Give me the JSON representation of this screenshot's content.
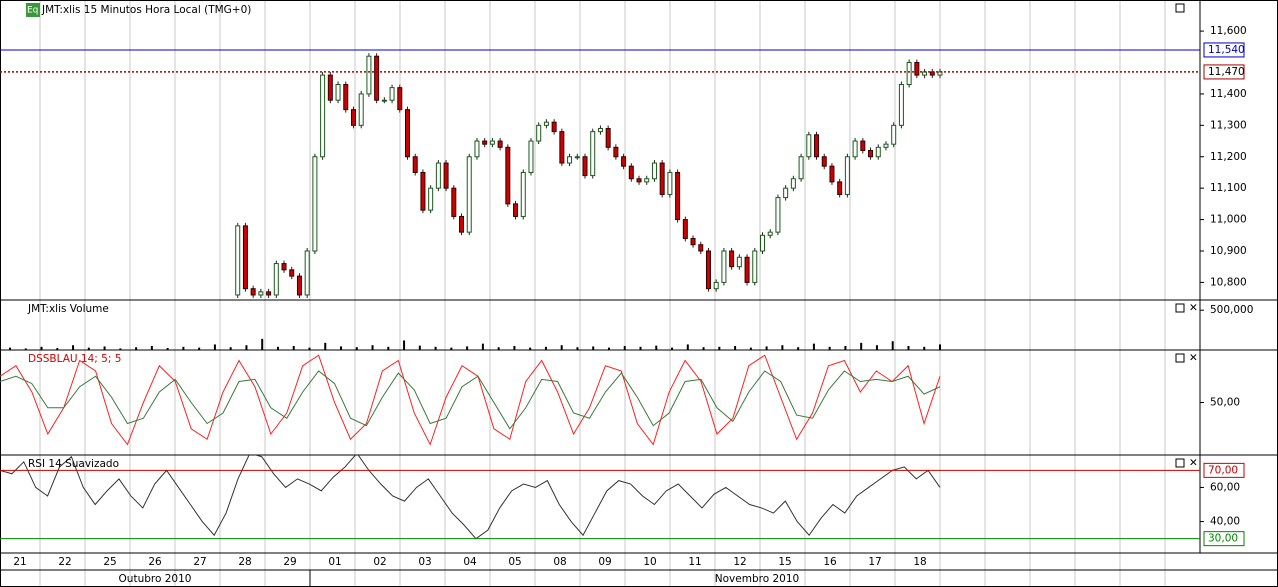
{
  "header": {
    "badge": "Eq",
    "title": "JMT:xlis 15 Minutos Hora Local (TMG+0)"
  },
  "panels": [
    {
      "type": "candlestick",
      "ylim": [
        10744,
        11699
      ],
      "yticks": [
        {
          "value": 10800,
          "label": "10,800"
        },
        {
          "value": 10900,
          "label": "10,900"
        },
        {
          "value": 11000,
          "label": "11,000"
        },
        {
          "value": 11100,
          "label": "11,100"
        },
        {
          "value": 11200,
          "label": "11,200"
        },
        {
          "value": 11300,
          "label": "11,300"
        },
        {
          "value": 11400,
          "label": "11,400"
        },
        {
          "value": 11600,
          "label": "11,600"
        }
      ],
      "lines": [
        {
          "value": 11540,
          "label": "11,540",
          "color": "#0000cc",
          "style": "solid"
        },
        {
          "value": 11470,
          "label": "11,470",
          "color": "#aa0000",
          "style": "dotted"
        }
      ],
      "close": [
        10760,
        10980,
        10780,
        10760,
        10770,
        10760,
        10860,
        10840,
        10820,
        10760,
        10900,
        11200,
        11460,
        11380,
        11430,
        11350,
        11300,
        11400,
        11520,
        11380,
        11380,
        11420,
        11350,
        11200,
        11150,
        11030,
        11100,
        11180,
        11100,
        11010,
        10960,
        11200,
        11250,
        11240,
        11250,
        11230,
        11050,
        11010,
        11150,
        11250,
        11300,
        11310,
        11280,
        11180,
        11200,
        11200,
        11140,
        11280,
        11290,
        11230,
        11200,
        11170,
        11130,
        11120,
        11130,
        11180,
        11080,
        11150,
        11000,
        10940,
        10920,
        10900,
        10780,
        10800,
        10900,
        10850,
        10880,
        10800,
        10900,
        10950,
        10960,
        11070,
        11100,
        11130,
        11200,
        11270,
        11200,
        11170,
        11120,
        11080,
        11200,
        11250,
        11220,
        11200,
        11230,
        11240,
        11300,
        11430,
        11500,
        11460,
        11470,
        11460,
        11470
      ]
    },
    {
      "type": "bar",
      "label": "JMT:xlis Volume",
      "ylim": [
        0,
        628000
      ],
      "yticks": [
        {
          "value": 500000,
          "label": "500,000"
        }
      ],
      "values": [
        30000,
        20000,
        40000,
        25000,
        60000,
        30000,
        45000,
        20000,
        35000,
        50000,
        25000,
        40000,
        30000,
        70000,
        35000,
        60000,
        140000,
        40000,
        50000,
        30000,
        90000,
        45000,
        35000,
        60000,
        40000,
        120000,
        55000,
        40000,
        30000,
        45000,
        80000,
        35000,
        50000,
        30000,
        40000,
        60000,
        35000,
        45000,
        30000,
        50000,
        40000,
        55000,
        30000,
        70000,
        35000,
        40000,
        50000,
        30000,
        45000,
        60000,
        35000,
        80000,
        40000,
        50000,
        90000,
        60000,
        110000,
        50000,
        40000,
        70000
      ]
    },
    {
      "type": "line",
      "label": "DSSBLAU 14; 5; 5",
      "ylim": [
        0,
        100
      ],
      "yticks": [
        {
          "value": 50,
          "label": "50,00"
        }
      ],
      "series": [
        {
          "color": "#ff2020",
          "values": [
            75,
            85,
            60,
            20,
            45,
            90,
            80,
            30,
            10,
            50,
            85,
            70,
            25,
            15,
            60,
            90,
            65,
            20,
            40,
            85,
            95,
            50,
            15,
            30,
            80,
            90,
            40,
            10,
            55,
            85,
            75,
            25,
            15,
            70,
            90,
            60,
            20,
            45,
            85,
            80,
            30,
            10,
            60,
            90,
            70,
            20,
            35,
            85,
            95,
            55,
            15,
            40,
            85,
            90,
            60,
            80,
            70,
            85,
            30,
            75
          ]
        },
        {
          "color": "#3a7a3a",
          "values": [
            70,
            75,
            68,
            45,
            45,
            65,
            75,
            55,
            30,
            35,
            60,
            72,
            50,
            30,
            40,
            70,
            72,
            45,
            35,
            60,
            80,
            68,
            35,
            28,
            55,
            78,
            62,
            30,
            35,
            65,
            75,
            50,
            25,
            45,
            72,
            70,
            40,
            35,
            60,
            78,
            55,
            28,
            40,
            70,
            72,
            45,
            32,
            60,
            80,
            70,
            38,
            35,
            62,
            80,
            70,
            72,
            70,
            75,
            58,
            65
          ]
        }
      ]
    },
    {
      "type": "line",
      "label": "RSI 14 Suavizado",
      "ylim": [
        21.6,
        79
      ],
      "yticks": [
        {
          "value": 40,
          "label": "40,00"
        },
        {
          "value": 60,
          "label": "60,00"
        }
      ],
      "lines": [
        {
          "value": 70,
          "label": "70,00",
          "color": "#cc0000",
          "style": "solid"
        },
        {
          "value": 30,
          "label": "30,00",
          "color": "#008800",
          "style": "solid"
        }
      ],
      "series": [
        {
          "color": "#333333",
          "values": [
            70,
            68,
            75,
            60,
            55,
            72,
            78,
            60,
            50,
            58,
            65,
            55,
            48,
            62,
            70,
            60,
            50,
            40,
            32,
            45,
            65,
            80,
            78,
            68,
            60,
            65,
            62,
            58,
            66,
            72,
            80,
            70,
            62,
            55,
            52,
            60,
            65,
            55,
            45,
            38,
            30,
            35,
            48,
            58,
            62,
            60,
            64,
            50,
            40,
            32,
            45,
            58,
            64,
            62,
            55,
            50,
            58,
            62,
            55,
            48,
            56,
            60,
            55,
            50,
            48,
            45,
            52,
            40,
            32,
            42,
            50,
            45,
            55,
            60,
            65,
            70,
            72,
            65,
            70,
            60
          ]
        }
      ]
    }
  ],
  "xaxis": {
    "days": [
      "21",
      "22",
      "25",
      "26",
      "27",
      "28",
      "29",
      "01",
      "02",
      "03",
      "04",
      "05",
      "08",
      "09",
      "10",
      "11",
      "12",
      "15",
      "16",
      "17",
      "18"
    ],
    "months": [
      "Outubro 2010",
      "Novembro 2010"
    ]
  }
}
